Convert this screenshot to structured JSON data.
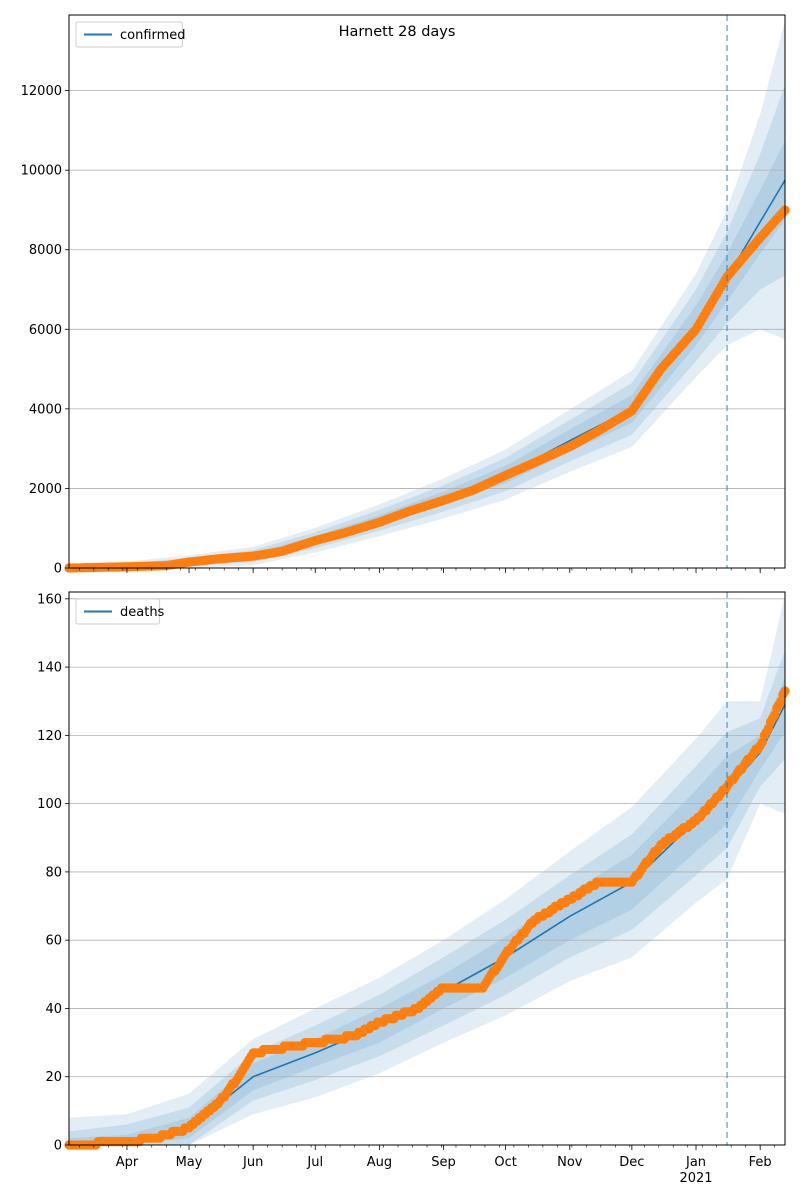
{
  "figure_title": "Harnett 28 days",
  "colors": {
    "line": "#1f77b4",
    "points": "#ff7f0e",
    "band": "#1f77b4",
    "grid": "#b0b0b0",
    "vline": "#1f77b4"
  },
  "x_axis": {
    "month_labels": [
      {
        "date": "2020-04-01",
        "label": "Apr"
      },
      {
        "date": "2020-05-01",
        "label": "May"
      },
      {
        "date": "2020-06-01",
        "label": "Jun"
      },
      {
        "date": "2020-07-01",
        "label": "Jul"
      },
      {
        "date": "2020-08-01",
        "label": "Aug"
      },
      {
        "date": "2020-09-01",
        "label": "Sep"
      },
      {
        "date": "2020-10-01",
        "label": "Oct"
      },
      {
        "date": "2020-11-01",
        "label": "Nov"
      },
      {
        "date": "2020-12-01",
        "label": "Dec"
      },
      {
        "date": "2021-01-01",
        "label": "Jan"
      },
      {
        "date": "2021-02-01",
        "label": "Feb"
      }
    ],
    "year_label": "2021",
    "xlim": [
      "2020-03-04",
      "2021-02-13"
    ]
  },
  "chart_data": [
    {
      "type": "line",
      "legend": "confirmed",
      "legend_position": "top-left",
      "grid": "y",
      "ylim": [
        0,
        13900
      ],
      "y_ticks": [
        0,
        2000,
        4000,
        6000,
        8000,
        10000,
        12000
      ],
      "forecast_start": "2021-01-16",
      "series": [
        {
          "name": "confirmed",
          "kind": "fit",
          "x": [
            "2020-03-04",
            "2020-04-01",
            "2020-05-01",
            "2020-06-01",
            "2020-07-01",
            "2020-08-01",
            "2020-09-01",
            "2020-10-01",
            "2020-11-01",
            "2020-12-01",
            "2021-01-01",
            "2021-01-16",
            "2021-02-01",
            "2021-02-13"
          ],
          "y": [
            0,
            30,
            150,
            300,
            700,
            1200,
            1750,
            2350,
            3200,
            4000,
            6100,
            7300,
            8700,
            9750
          ]
        },
        {
          "name": "",
          "kind": "observed",
          "x": [
            "2020-03-04",
            "2020-04-01",
            "2020-04-20",
            "2020-05-01",
            "2020-05-15",
            "2020-06-01",
            "2020-06-15",
            "2020-07-01",
            "2020-07-15",
            "2020-08-01",
            "2020-08-15",
            "2020-09-01",
            "2020-09-15",
            "2020-10-01",
            "2020-10-15",
            "2020-11-01",
            "2020-11-15",
            "2020-12-01",
            "2020-12-15",
            "2021-01-01",
            "2021-01-16",
            "2021-02-01",
            "2021-02-13"
          ],
          "y": [
            0,
            30,
            60,
            150,
            230,
            300,
            420,
            690,
            880,
            1150,
            1420,
            1700,
            1950,
            2330,
            2650,
            3050,
            3450,
            3950,
            5000,
            6000,
            7320,
            8300,
            9000
          ]
        }
      ],
      "bands": {
        "x": [
          "2020-03-04",
          "2020-04-01",
          "2020-05-01",
          "2020-06-01",
          "2020-07-01",
          "2020-08-01",
          "2020-09-01",
          "2020-10-01",
          "2020-11-01",
          "2020-12-01",
          "2021-01-01",
          "2021-01-16",
          "2021-02-01",
          "2021-02-13"
        ],
        "center": [
          0,
          30,
          150,
          300,
          700,
          1200,
          1750,
          2350,
          3200,
          4000,
          6100,
          7300,
          8700,
          9750
        ],
        "widths": [
          [
            30,
            40,
            50,
            70,
            100,
            130,
            170,
            220,
            280,
            350,
            500,
            600,
            800,
            1000
          ],
          [
            60,
            80,
            110,
            150,
            200,
            260,
            330,
            420,
            520,
            650,
            900,
            1150,
            1700,
            2400
          ],
          [
            100,
            130,
            170,
            230,
            310,
            400,
            500,
            630,
            780,
            960,
            1300,
            1700,
            2700,
            4000
          ]
        ]
      }
    },
    {
      "type": "line",
      "legend": "deaths",
      "legend_position": "top-left",
      "grid": "y",
      "ylim": [
        0,
        162
      ],
      "y_ticks": [
        0,
        20,
        40,
        60,
        80,
        100,
        120,
        140,
        160
      ],
      "forecast_start": "2021-01-16",
      "series": [
        {
          "name": "deaths",
          "kind": "fit",
          "x": [
            "2020-03-04",
            "2020-04-01",
            "2020-05-01",
            "2020-06-01",
            "2020-07-01",
            "2020-08-01",
            "2020-09-01",
            "2020-10-01",
            "2020-11-01",
            "2020-12-01",
            "2021-01-01",
            "2021-01-16",
            "2021-02-01",
            "2021-02-13"
          ],
          "y": [
            0,
            1,
            5,
            20,
            27,
            35,
            45,
            55,
            67,
            77,
            95,
            104,
            115,
            129
          ]
        },
        {
          "name": "",
          "kind": "observed",
          "x": [
            "2020-03-04",
            "2020-04-01",
            "2020-04-15",
            "2020-05-01",
            "2020-05-15",
            "2020-05-25",
            "2020-06-01",
            "2020-06-10",
            "2020-07-01",
            "2020-07-20",
            "2020-08-01",
            "2020-08-20",
            "2020-09-01",
            "2020-09-20",
            "2020-10-01",
            "2020-10-15",
            "2020-11-01",
            "2020-11-15",
            "2020-12-01",
            "2020-12-15",
            "2021-01-01",
            "2021-01-16",
            "2021-02-01",
            "2021-02-13"
          ],
          "y": [
            0,
            1,
            2,
            5,
            12,
            20,
            27,
            28,
            30,
            32,
            36,
            40,
            46,
            46,
            56,
            66,
            72,
            77,
            77,
            88,
            95,
            105,
            117,
            133
          ]
        }
      ],
      "bands": {
        "x": [
          "2020-03-04",
          "2020-04-01",
          "2020-05-01",
          "2020-06-01",
          "2020-07-01",
          "2020-08-01",
          "2020-09-01",
          "2020-10-01",
          "2020-11-01",
          "2020-12-01",
          "2021-01-01",
          "2021-01-16",
          "2021-02-01",
          "2021-02-13"
        ],
        "center": [
          0,
          1,
          5,
          20,
          27,
          35,
          45,
          55,
          67,
          77,
          95,
          104,
          115,
          129
        ],
        "widths": [
          [
            2,
            2,
            3,
            4,
            4,
            5,
            5,
            6,
            7,
            8,
            9,
            10,
            5,
            8
          ],
          [
            4,
            5,
            6,
            7,
            8,
            9,
            10,
            11,
            12,
            14,
            16,
            17,
            10,
            16
          ],
          [
            8,
            8,
            10,
            11,
            13,
            14,
            15,
            17,
            19,
            22,
            24,
            26,
            15,
            32
          ]
        ]
      }
    }
  ]
}
